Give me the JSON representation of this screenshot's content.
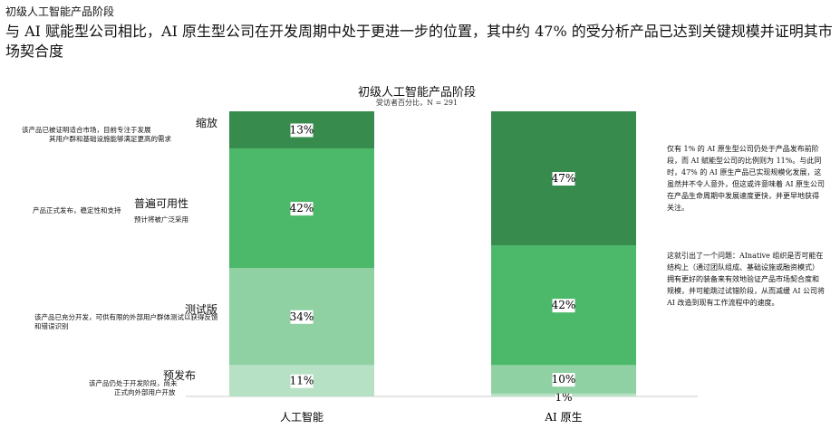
{
  "header": {
    "kicker": "初级人工智能产品阶段",
    "headline": "与 AI 赋能型公司相比，AI 原生型公司在开发周期中处于更进一步的位置，其中约 47% 的受分析产品已达到关键规模并证明其市场契合度"
  },
  "stages": [
    {
      "label": "缩放",
      "desc_line1": "该产品已被证明适合市场，目前专注于发展",
      "desc_line2": "其用户群和基础设施能够满足更高的需求"
    },
    {
      "label": "普遍可用性",
      "desc_line1": "产品正式发布，稳定性和支持",
      "desc_line2": "预计将被广泛采用"
    },
    {
      "label": "测试版",
      "desc_line1": "该产品已充分开发，可供有限的外部用户群体测试以获得反馈",
      "desc_line2": "和错误识别"
    },
    {
      "label": "预发布",
      "desc_line1": "该产品仍处于开发阶段，尚未",
      "desc_line2": "正式向外部用户开放"
    }
  ],
  "notes": {
    "note1": "仅有 1% 的 AI 原生型公司仍处于产品发布前阶段，而 AI 赋能型公司的比例则为 11%。与此同时，47% 的 AI 原生产品已实现规模化发展，这虽然并不令人意外，但这或许意味着 AI 原生公司在产品生命周期中发展速度更快，并更早地获得关注。",
    "note2": "这就引出了一个问题：AInative 组织是否可能在结构上（通过团队组成、基础设施或融资模式）拥有更好的装备来有效地验证产品市场契合度和规模，并可能跳过试错阶段，从而减缓 AI 公司将 AI 改造到现有工作流程中的速度。"
  },
  "colors": {
    "prelaunch": "#b7e1c4",
    "beta": "#8fd1a3",
    "ga": "#4cb86a",
    "scale": "#368b4d"
  },
  "chart_data": {
    "type": "bar",
    "stacked": true,
    "title": "初级人工智能产品阶段",
    "subtitle": "受访者百分比，N = 291",
    "categories": [
      "人工智能",
      "AI 原生"
    ],
    "series": [
      {
        "name": "预发布",
        "values": [
          11,
          1
        ]
      },
      {
        "name": "测试版",
        "values": [
          34,
          10
        ]
      },
      {
        "name": "普遍可用性",
        "values": [
          42,
          42
        ]
      },
      {
        "name": "缩放",
        "values": [
          13,
          47
        ]
      }
    ],
    "value_labels": [
      [
        "11%",
        "34%",
        "42%",
        "13%"
      ],
      [
        "1%",
        "10%",
        "42%",
        "47%"
      ]
    ],
    "ylim": [
      0,
      100
    ],
    "grid": false,
    "legend": "none"
  }
}
